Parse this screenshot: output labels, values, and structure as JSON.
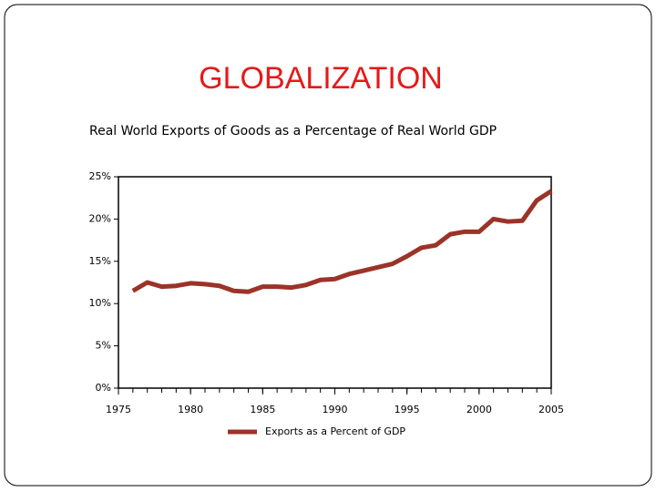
{
  "chart_data": {
    "type": "line",
    "title": "GLOBALIZATION",
    "subtitle": "Real World Exports of Goods as a Percentage of Real World GDP",
    "x": [
      1976,
      1977,
      1978,
      1979,
      1980,
      1981,
      1982,
      1983,
      1984,
      1985,
      1986,
      1987,
      1988,
      1989,
      1990,
      1991,
      1992,
      1993,
      1994,
      1995,
      1996,
      1997,
      1998,
      1999,
      2000,
      2001,
      2002,
      2003,
      2004,
      2005
    ],
    "series": [
      {
        "name": "Exports as a Percent of GDP",
        "color": "#9b3328",
        "values": [
          11.5,
          12.5,
          12.0,
          12.1,
          12.4,
          12.3,
          12.1,
          11.5,
          11.4,
          12.0,
          12.0,
          11.9,
          12.2,
          12.8,
          12.9,
          13.5,
          13.9,
          14.3,
          14.7,
          15.6,
          16.6,
          16.9,
          18.2,
          18.5,
          18.5,
          20.0,
          19.7,
          19.8,
          22.2,
          23.3
        ]
      }
    ],
    "xlim": [
      1975,
      2005
    ],
    "xticks": [
      1975,
      1980,
      1985,
      1990,
      1995,
      2000,
      2005
    ],
    "ylim": [
      0,
      25
    ],
    "yticks": [
      {
        "value": 0,
        "label": "0%"
      },
      {
        "value": 5,
        "label": "5%"
      },
      {
        "value": 10,
        "label": "10%"
      },
      {
        "value": 15,
        "label": "15%"
      },
      {
        "value": 20,
        "label": "20%"
      },
      {
        "value": 25,
        "label": "25%"
      }
    ],
    "legend": "bottom"
  }
}
